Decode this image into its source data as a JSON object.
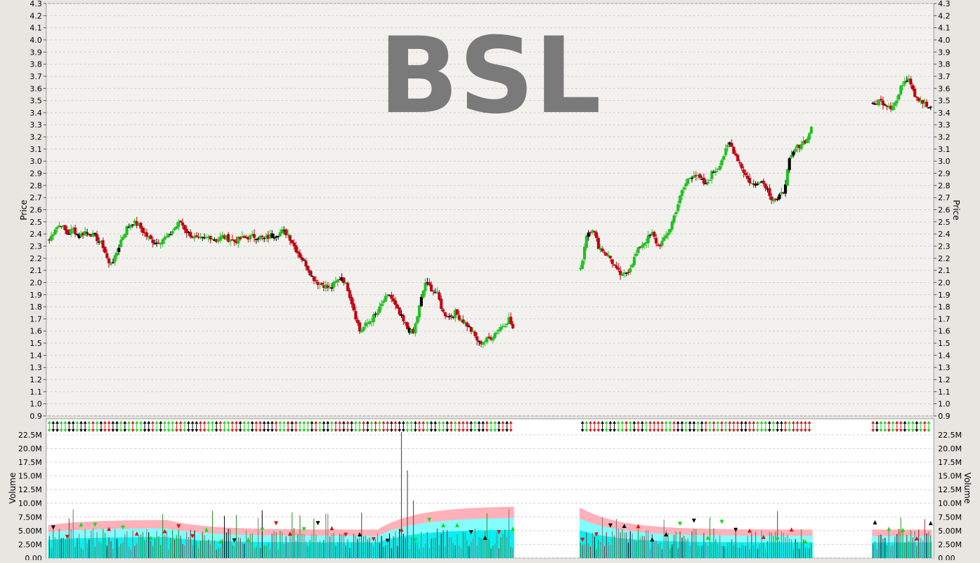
{
  "chart_data": {
    "type": "candlestick",
    "title": "BSL",
    "price_panel": {
      "ylabel": "Price",
      "ylim": [
        0.9,
        4.3
      ],
      "yticks": [
        "0.9",
        "1.0",
        "1.1",
        "1.2",
        "1.3",
        "1.4",
        "1.5",
        "1.6",
        "1.7",
        "1.8",
        "1.9",
        "2.0",
        "2.1",
        "2.2",
        "2.3",
        "2.4",
        "2.5",
        "2.6",
        "2.7",
        "2.8",
        "2.9",
        "3.0",
        "3.1",
        "3.2",
        "3.3",
        "3.4",
        "3.5",
        "3.6",
        "3.7",
        "3.8",
        "3.9",
        "4.0",
        "4.1",
        "4.2",
        "4.3"
      ],
      "close_path": [
        2.35,
        2.45,
        2.48,
        2.4,
        2.44,
        2.38,
        2.42,
        2.4,
        2.36,
        2.3,
        2.15,
        2.2,
        2.35,
        2.45,
        2.5,
        2.47,
        2.4,
        2.35,
        2.33,
        2.36,
        2.38,
        2.45,
        2.5,
        2.42,
        2.38,
        2.35,
        2.36,
        2.38,
        2.35,
        2.38,
        2.36,
        2.34,
        2.36,
        2.37,
        2.38,
        2.38,
        2.36,
        2.38,
        2.4,
        2.42,
        2.4,
        2.3,
        2.22,
        2.15,
        2.05,
        2.0,
        1.98,
        1.95,
        2.0,
        2.05,
        1.95,
        1.78,
        1.6,
        1.65,
        1.7,
        1.75,
        1.85,
        1.9,
        1.8,
        1.7,
        1.62,
        1.58,
        1.8,
        2.0,
        1.95,
        1.9,
        1.75,
        1.72,
        1.75,
        1.7,
        1.65,
        1.58,
        1.5,
        1.52,
        1.55,
        1.6,
        1.65,
        1.7,
        1.58,
        null,
        null,
        null,
        null,
        null,
        null,
        null,
        null,
        null,
        null,
        2.1,
        2.4,
        2.45,
        2.3,
        2.25,
        2.2,
        2.1,
        2.05,
        2.1,
        2.2,
        2.3,
        2.35,
        2.4,
        2.3,
        2.35,
        2.45,
        2.6,
        2.75,
        2.85,
        2.9,
        2.85,
        2.8,
        2.9,
        2.95,
        3.05,
        3.15,
        3.05,
        2.95,
        2.85,
        2.8,
        2.85,
        2.8,
        2.7,
        2.68,
        2.75,
        3.0,
        3.1,
        3.15,
        3.18,
        3.35,
        null,
        null,
        null,
        null,
        null,
        null,
        null,
        null,
        null,
        3.45,
        3.5,
        3.48,
        3.45,
        3.5,
        3.65,
        3.7,
        3.55,
        3.5,
        3.45,
        3.42
      ]
    },
    "volume_panel": {
      "ylabel": "Volume",
      "ylim": [
        0,
        23000000
      ],
      "yticks": [
        "0.00",
        "2.50M",
        "5.00M",
        "7.50M",
        "10.0M",
        "12.5M",
        "15.0M",
        "17.5M",
        "20.0M",
        "22.5M"
      ],
      "spikes": [
        {
          "bar": 59,
          "value": 23000000
        },
        {
          "bar": 60,
          "value": 16000000
        },
        {
          "bar": 61,
          "value": 10500000
        }
      ]
    },
    "colors": {
      "up": "#22c022",
      "down": "#c00010",
      "flat": "#000000",
      "grid": "#cfcfcf",
      "band_outer": "#ffb0b8",
      "band_mid": "#80ffff",
      "band_inner": "#00f0f0"
    }
  }
}
